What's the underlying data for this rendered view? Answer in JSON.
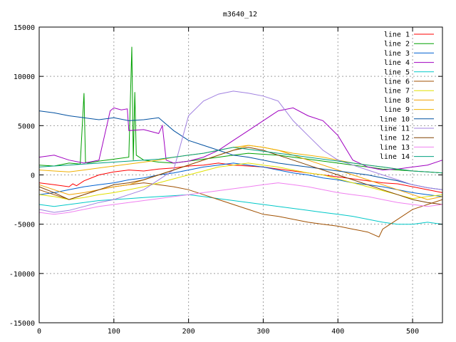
{
  "chart_data": {
    "type": "line",
    "title": "m3640_12",
    "xlabel": "",
    "ylabel": "",
    "xlim": [
      0,
      540
    ],
    "ylim": [
      -15000,
      15000
    ],
    "xticks": [
      0,
      100,
      200,
      300,
      400,
      500
    ],
    "yticks": [
      -15000,
      -10000,
      -5000,
      0,
      5000,
      10000,
      15000
    ],
    "grid": true,
    "legend_position": "top-right",
    "series": [
      {
        "name": "line 1",
        "color": "#ff0000",
        "x": [
          0,
          20,
          40,
          45,
          50,
          60,
          80,
          100,
          120,
          140,
          160,
          180,
          200,
          220,
          240,
          260,
          280,
          300,
          320,
          340,
          360,
          380,
          400,
          420,
          440,
          460,
          480,
          500,
          520,
          540
        ],
        "y": [
          -800,
          -1000,
          -1200,
          -900,
          -1100,
          -600,
          0,
          300,
          500,
          400,
          600,
          700,
          900,
          1000,
          1200,
          1000,
          900,
          800,
          600,
          400,
          200,
          0,
          -200,
          -400,
          -600,
          -800,
          -900,
          -1200,
          -1500,
          -1800
        ]
      },
      {
        "name": "line 2",
        "color": "#00a000",
        "x": [
          0,
          20,
          40,
          55,
          60,
          62,
          65,
          80,
          100,
          120,
          124,
          126,
          128,
          130,
          140,
          160,
          180,
          200,
          220,
          240,
          260,
          280,
          300,
          320,
          340,
          360,
          380,
          400,
          420,
          440,
          460,
          480,
          500,
          520,
          540
        ],
        "y": [
          1000,
          900,
          1200,
          1100,
          8300,
          1300,
          1200,
          1400,
          1600,
          1800,
          13000,
          1500,
          8400,
          2000,
          1500,
          1300,
          1200,
          1400,
          1600,
          1800,
          2000,
          2200,
          2100,
          2000,
          1800,
          1600,
          1400,
          1200,
          1000,
          800,
          600,
          500,
          400,
          300,
          200
        ]
      },
      {
        "name": "line 3",
        "color": "#0060d0",
        "x": [
          0,
          20,
          40,
          60,
          80,
          100,
          120,
          140,
          160,
          180,
          200,
          220,
          240,
          260,
          280,
          300,
          320,
          340,
          360,
          380,
          400,
          420,
          440,
          460,
          480,
          500,
          520,
          540
        ],
        "y": [
          -2000,
          -1800,
          -1500,
          -1200,
          -1000,
          -800,
          -500,
          -300,
          0,
          200,
          500,
          800,
          1000,
          1200,
          1000,
          800,
          500,
          200,
          0,
          -300,
          -500,
          -800,
          -1000,
          -1200,
          -1500,
          -1800,
          -2000,
          -2200
        ]
      },
      {
        "name": "line 4",
        "color": "#a000c0",
        "x": [
          0,
          20,
          40,
          60,
          80,
          95,
          100,
          110,
          118,
          120,
          140,
          160,
          165,
          170,
          180,
          200,
          220,
          240,
          260,
          280,
          300,
          320,
          340,
          360,
          380,
          400,
          420,
          440,
          460,
          480,
          500,
          520,
          540
        ],
        "y": [
          1800,
          2000,
          1500,
          1200,
          1500,
          6500,
          6800,
          6600,
          6700,
          4500,
          4600,
          4200,
          5000,
          1500,
          1200,
          1400,
          1800,
          2500,
          3500,
          4500,
          5500,
          6500,
          6800,
          6000,
          5500,
          4000,
          1500,
          800,
          500,
          600,
          800,
          1000,
          1500
        ]
      },
      {
        "name": "line 5",
        "color": "#00c8c8",
        "x": [
          0,
          20,
          40,
          60,
          80,
          100,
          120,
          140,
          160,
          180,
          200,
          220,
          240,
          260,
          280,
          300,
          320,
          340,
          360,
          380,
          400,
          420,
          440,
          460,
          480,
          500,
          520,
          540
        ],
        "y": [
          -3000,
          -3200,
          -3000,
          -2800,
          -2600,
          -2500,
          -2400,
          -2300,
          -2200,
          -2100,
          -2000,
          -2200,
          -2400,
          -2600,
          -2800,
          -3000,
          -3200,
          -3400,
          -3600,
          -3800,
          -4000,
          -4200,
          -4500,
          -4800,
          -5000,
          -5000,
          -4800,
          -5000
        ]
      },
      {
        "name": "line 6",
        "color": "#a05000",
        "x": [
          0,
          20,
          40,
          60,
          80,
          100,
          120,
          140,
          160,
          180,
          200,
          220,
          240,
          260,
          280,
          300,
          320,
          340,
          360,
          380,
          400,
          420,
          440,
          455,
          460,
          480,
          500,
          520,
          540
        ],
        "y": [
          -1500,
          -2000,
          -2500,
          -2000,
          -1500,
          -1200,
          -1000,
          -800,
          -1000,
          -1200,
          -1500,
          -2000,
          -2500,
          -3000,
          -3500,
          -4000,
          -4200,
          -4500,
          -4800,
          -5000,
          -5200,
          -5500,
          -5800,
          -6300,
          -5500,
          -4500,
          -3500,
          -3000,
          -2500
        ]
      },
      {
        "name": "line 7",
        "color": "#e0e000",
        "x": [
          0,
          20,
          40,
          60,
          80,
          100,
          120,
          140,
          160,
          180,
          200,
          220,
          240,
          260,
          280,
          300,
          320,
          340,
          360,
          380,
          400,
          420,
          440,
          460,
          480,
          500,
          520,
          540
        ],
        "y": [
          -2000,
          -2200,
          -2500,
          -2300,
          -2000,
          -1800,
          -1500,
          -1200,
          -800,
          -400,
          0,
          400,
          800,
          1000,
          1200,
          1000,
          800,
          500,
          200,
          0,
          -400,
          -800,
          -1200,
          -1600,
          -2000,
          -2400,
          -2200,
          -2000
        ]
      },
      {
        "name": "line 8",
        "color": "#f0a000",
        "x": [
          0,
          20,
          40,
          60,
          80,
          100,
          120,
          140,
          160,
          180,
          200,
          220,
          240,
          260,
          280,
          300,
          320,
          340,
          360,
          380,
          400,
          420,
          440,
          460,
          480,
          500,
          520,
          540
        ],
        "y": [
          -1000,
          -1500,
          -2000,
          -1800,
          -1500,
          -1200,
          -1000,
          -500,
          0,
          500,
          1000,
          1500,
          2000,
          2500,
          3000,
          2800,
          2500,
          2000,
          1500,
          1000,
          500,
          0,
          -500,
          -1000,
          -1500,
          -2000,
          -2500,
          -2200
        ]
      },
      {
        "name": "line 9",
        "color": "#f0b000",
        "x": [
          0,
          20,
          40,
          60,
          80,
          100,
          120,
          140,
          160,
          180,
          200,
          220,
          240,
          260,
          280,
          300,
          320,
          340,
          360,
          380,
          400,
          420,
          440,
          460,
          480,
          500,
          520,
          540
        ],
        "y": [
          500,
          400,
          300,
          500,
          700,
          900,
          1100,
          1300,
          1500,
          1800,
          2000,
          2200,
          2500,
          2800,
          3000,
          2800,
          2500,
          2200,
          2000,
          1800,
          1500,
          1200,
          1000,
          800,
          600,
          400,
          300,
          200
        ]
      },
      {
        "name": "line 10",
        "color": "#0050a0",
        "x": [
          0,
          20,
          40,
          60,
          80,
          100,
          120,
          140,
          160,
          180,
          200,
          220,
          240,
          260,
          280,
          300,
          320,
          340,
          360,
          380,
          400,
          420,
          440,
          460,
          480,
          500,
          520,
          540
        ],
        "y": [
          6500,
          6300,
          6000,
          5800,
          5600,
          5800,
          5500,
          5600,
          5800,
          4500,
          3500,
          3000,
          2500,
          2000,
          1800,
          1500,
          1200,
          1000,
          800,
          600,
          400,
          200,
          0,
          -300,
          -600,
          -1000,
          -1300,
          -1500
        ]
      },
      {
        "name": "line 11",
        "color": "#a080e0",
        "x": [
          0,
          20,
          40,
          60,
          80,
          100,
          120,
          140,
          160,
          180,
          200,
          220,
          240,
          260,
          280,
          300,
          320,
          340,
          360,
          380,
          400,
          420,
          440,
          460,
          480,
          500,
          520,
          540
        ],
        "y": [
          -3500,
          -3800,
          -3600,
          -3200,
          -2800,
          -2500,
          -2000,
          -1500,
          -500,
          500,
          6000,
          7500,
          8200,
          8500,
          8300,
          8000,
          7500,
          5500,
          4000,
          2500,
          1500,
          1000,
          500,
          0,
          -500,
          -1000,
          -1300,
          -1500
        ]
      },
      {
        "name": "line 12",
        "color": "#804000",
        "x": [
          0,
          20,
          40,
          60,
          80,
          100,
          120,
          140,
          160,
          180,
          200,
          220,
          240,
          260,
          280,
          300,
          320,
          340,
          360,
          380,
          400,
          420,
          440,
          460,
          480,
          500,
          520,
          540
        ],
        "y": [
          -1200,
          -1800,
          -2500,
          -2000,
          -1500,
          -1000,
          -800,
          -500,
          0,
          500,
          1000,
          1500,
          2000,
          2500,
          2800,
          2500,
          2000,
          1500,
          1000,
          500,
          0,
          -500,
          -1000,
          -1500,
          -2000,
          -2500,
          -2800,
          -3000
        ]
      },
      {
        "name": "line 13",
        "color": "#f080f0",
        "x": [
          0,
          20,
          40,
          60,
          80,
          100,
          120,
          140,
          160,
          180,
          200,
          220,
          240,
          260,
          280,
          300,
          320,
          340,
          360,
          380,
          400,
          420,
          440,
          460,
          480,
          500,
          520,
          540
        ],
        "y": [
          -3800,
          -4000,
          -3800,
          -3500,
          -3200,
          -3000,
          -2800,
          -2600,
          -2400,
          -2200,
          -2000,
          -1800,
          -1600,
          -1400,
          -1200,
          -1000,
          -800,
          -1000,
          -1200,
          -1500,
          -1800,
          -2000,
          -2200,
          -2500,
          -2800,
          -3000,
          -3200,
          -3000
        ]
      },
      {
        "name": "line 14",
        "color": "#00a080",
        "x": [
          0,
          20,
          40,
          60,
          80,
          100,
          120,
          140,
          160,
          180,
          200,
          220,
          240,
          260,
          280,
          300,
          320,
          340,
          360,
          380,
          400,
          420,
          440,
          460,
          480,
          500,
          520,
          540
        ],
        "y": [
          800,
          900,
          1000,
          1100,
          1200,
          1300,
          1400,
          1500,
          1600,
          1800,
          2000,
          2200,
          2500,
          2800,
          2600,
          2400,
          2200,
          2000,
          1800,
          1600,
          1400,
          1200,
          1000,
          800,
          600,
          400,
          300,
          200
        ]
      }
    ]
  }
}
